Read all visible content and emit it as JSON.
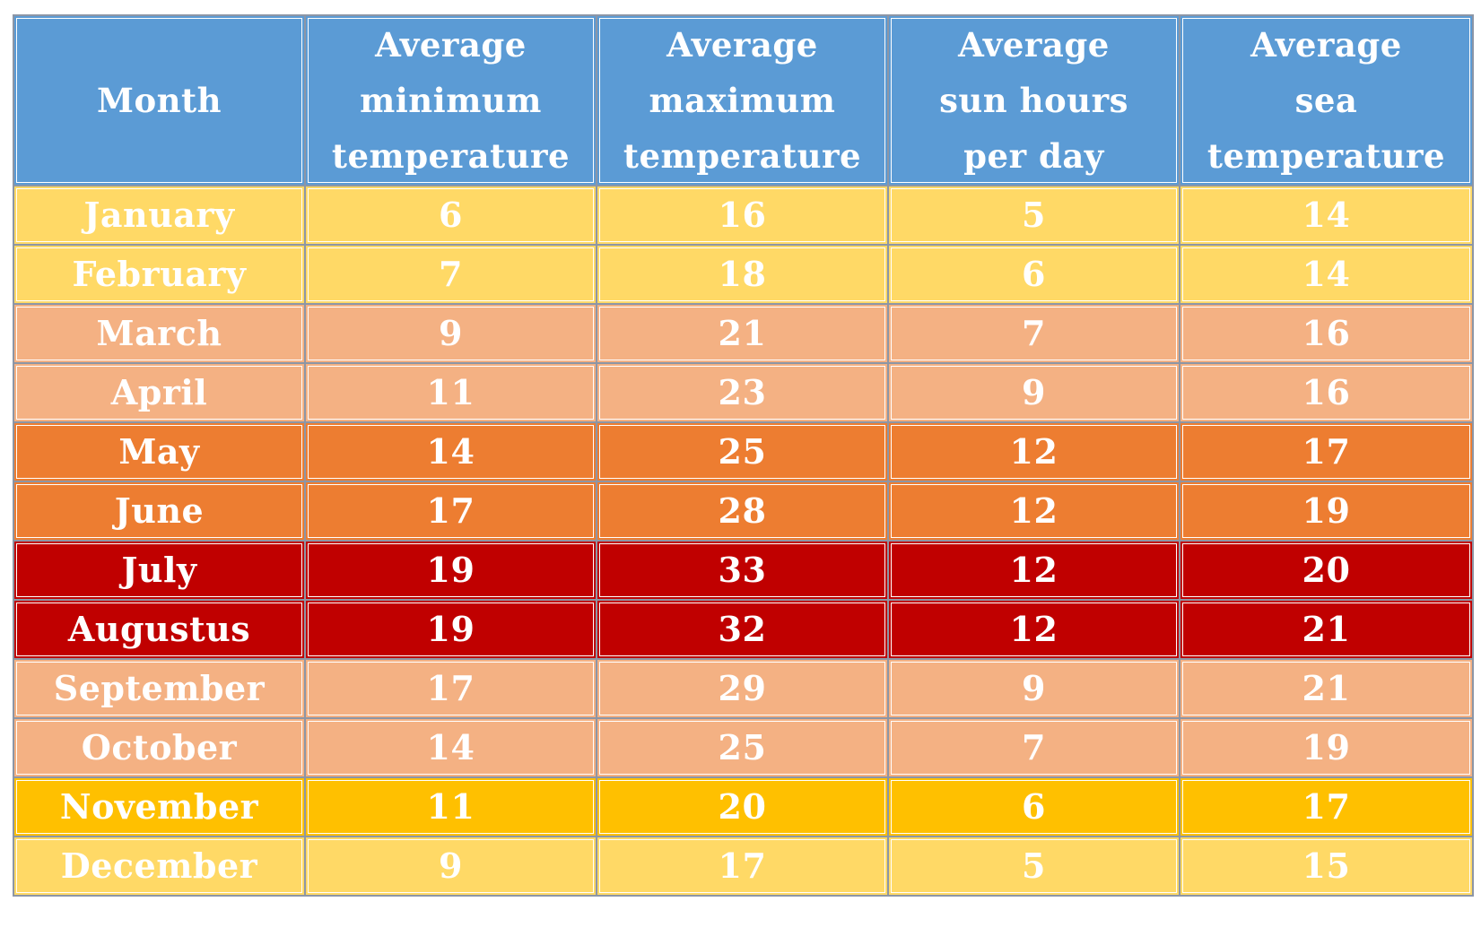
{
  "colors": {
    "header": "#5b9bd5",
    "light_yellow": "#ffd966",
    "peach": "#f4b183",
    "orange": "#ed7d31",
    "dark_red": "#c00000",
    "gold": "#ffc000",
    "text": "#ffffff"
  },
  "chart_data": {
    "type": "table",
    "columns": [
      [
        "Month"
      ],
      [
        "Average",
        "minimum",
        "temperature"
      ],
      [
        "Average",
        "maximum",
        "temperature"
      ],
      [
        "Average",
        "sun hours",
        "per day"
      ],
      [
        "Average",
        "sea",
        "temperature"
      ]
    ],
    "rows": [
      {
        "month": "January",
        "min": "6",
        "max": "16",
        "sun": "5",
        "sea": "14",
        "color": "#ffd966"
      },
      {
        "month": "February",
        "min": "7",
        "max": "18",
        "sun": "6",
        "sea": "14",
        "color": "#ffd966"
      },
      {
        "month": "March",
        "min": "9",
        "max": "21",
        "sun": "7",
        "sea": "16",
        "color": "#f4b183"
      },
      {
        "month": "April",
        "min": "11",
        "max": "23",
        "sun": "9",
        "sea": "16",
        "color": "#f4b183"
      },
      {
        "month": "May",
        "min": "14",
        "max": "25",
        "sun": "12",
        "sea": "17",
        "color": "#ed7d31"
      },
      {
        "month": "June",
        "min": "17",
        "max": "28",
        "sun": "12",
        "sea": "19",
        "color": "#ed7d31"
      },
      {
        "month": "July",
        "min": "19",
        "max": "33",
        "sun": "12",
        "sea": "20",
        "color": "#c00000"
      },
      {
        "month": "Augustus",
        "min": "19",
        "max": "32",
        "sun": "12",
        "sea": "21",
        "color": "#c00000"
      },
      {
        "month": "September",
        "min": "17",
        "max": "29",
        "sun": "9",
        "sea": "21",
        "color": "#f4b183"
      },
      {
        "month": "October",
        "min": "14",
        "max": "25",
        "sun": "7",
        "sea": "19",
        "color": "#f4b183"
      },
      {
        "month": "November",
        "min": "11",
        "max": "20",
        "sun": "6",
        "sea": "17",
        "color": "#ffc000"
      },
      {
        "month": "December",
        "min": "9",
        "max": "17",
        "sun": "5",
        "sea": "15",
        "color": "#ffd966"
      }
    ]
  }
}
